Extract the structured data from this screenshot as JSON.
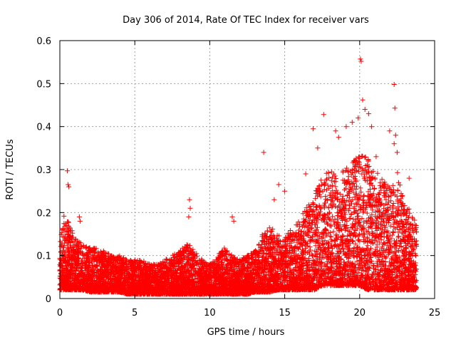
{
  "chart_data": {
    "type": "scatter",
    "title": "Day 306 of 2014, Rate Of TEC Index for receiver vars",
    "xlabel": "GPS time / hours",
    "ylabel": "ROTI / TECUs",
    "xlim": [
      0,
      25
    ],
    "ylim": [
      0,
      0.6
    ],
    "xticks": [
      "0",
      "5",
      "10",
      "15",
      "20",
      "25"
    ],
    "yticks": [
      "0",
      "0.1",
      "0.2",
      "0.3",
      "0.4",
      "0.5",
      "0.6"
    ],
    "grid": true,
    "marker": "+",
    "color": "#ff0000",
    "envelope": {
      "x": [
        0,
        0.3,
        0.6,
        1.0,
        1.5,
        2.0,
        2.5,
        3.0,
        3.5,
        4.0,
        4.5,
        5.0,
        5.5,
        6.0,
        6.5,
        7.0,
        7.5,
        8.0,
        8.5,
        9.0,
        9.5,
        10.0,
        10.5,
        11.0,
        11.5,
        12.0,
        12.5,
        13.0,
        13.5,
        14.0,
        14.5,
        15.0,
        15.5,
        16.0,
        16.5,
        17.0,
        17.5,
        18.0,
        18.5,
        19.0,
        19.5,
        20.0,
        20.5,
        21.0,
        21.5,
        22.0,
        22.5,
        23.0,
        23.5,
        23.8
      ],
      "upper": [
        0.13,
        0.2,
        0.18,
        0.14,
        0.13,
        0.12,
        0.12,
        0.11,
        0.1,
        0.1,
        0.09,
        0.09,
        0.09,
        0.08,
        0.08,
        0.09,
        0.1,
        0.11,
        0.13,
        0.11,
        0.09,
        0.08,
        0.1,
        0.12,
        0.1,
        0.09,
        0.1,
        0.11,
        0.15,
        0.17,
        0.15,
        0.14,
        0.17,
        0.18,
        0.22,
        0.25,
        0.28,
        0.3,
        0.29,
        0.3,
        0.32,
        0.34,
        0.33,
        0.3,
        0.28,
        0.26,
        0.3,
        0.22,
        0.2,
        0.17
      ],
      "lower": [
        0.02,
        0.02,
        0.02,
        0.02,
        0.02,
        0.015,
        0.015,
        0.015,
        0.015,
        0.015,
        0.01,
        0.01,
        0.01,
        0.01,
        0.01,
        0.01,
        0.01,
        0.01,
        0.01,
        0.01,
        0.01,
        0.01,
        0.01,
        0.01,
        0.01,
        0.01,
        0.01,
        0.015,
        0.015,
        0.015,
        0.02,
        0.02,
        0.02,
        0.02,
        0.02,
        0.02,
        0.03,
        0.03,
        0.03,
        0.03,
        0.03,
        0.03,
        0.02,
        0.02,
        0.02,
        0.02,
        0.02,
        0.02,
        0.02,
        0.02
      ]
    },
    "notable_points": [
      {
        "x": 0.5,
        "y": 0.297
      },
      {
        "x": 0.55,
        "y": 0.265
      },
      {
        "x": 0.6,
        "y": 0.26
      },
      {
        "x": 1.3,
        "y": 0.19
      },
      {
        "x": 1.35,
        "y": 0.18
      },
      {
        "x": 8.65,
        "y": 0.23
      },
      {
        "x": 8.7,
        "y": 0.21
      },
      {
        "x": 8.6,
        "y": 0.19
      },
      {
        "x": 11.5,
        "y": 0.19
      },
      {
        "x": 11.6,
        "y": 0.18
      },
      {
        "x": 13.6,
        "y": 0.34
      },
      {
        "x": 14.6,
        "y": 0.265
      },
      {
        "x": 14.3,
        "y": 0.23
      },
      {
        "x": 15.0,
        "y": 0.25
      },
      {
        "x": 16.4,
        "y": 0.29
      },
      {
        "x": 16.9,
        "y": 0.395
      },
      {
        "x": 17.2,
        "y": 0.35
      },
      {
        "x": 17.6,
        "y": 0.428
      },
      {
        "x": 18.4,
        "y": 0.39
      },
      {
        "x": 18.6,
        "y": 0.375
      },
      {
        "x": 19.1,
        "y": 0.4
      },
      {
        "x": 19.5,
        "y": 0.41
      },
      {
        "x": 19.9,
        "y": 0.42
      },
      {
        "x": 20.05,
        "y": 0.557
      },
      {
        "x": 20.1,
        "y": 0.552
      },
      {
        "x": 20.2,
        "y": 0.462
      },
      {
        "x": 20.35,
        "y": 0.44
      },
      {
        "x": 20.6,
        "y": 0.43
      },
      {
        "x": 20.8,
        "y": 0.4
      },
      {
        "x": 21.1,
        "y": 0.33
      },
      {
        "x": 22.0,
        "y": 0.39
      },
      {
        "x": 22.3,
        "y": 0.498
      },
      {
        "x": 22.35,
        "y": 0.443
      },
      {
        "x": 22.4,
        "y": 0.38
      },
      {
        "x": 22.3,
        "y": 0.36
      },
      {
        "x": 22.5,
        "y": 0.34
      },
      {
        "x": 23.3,
        "y": 0.28
      }
    ]
  }
}
